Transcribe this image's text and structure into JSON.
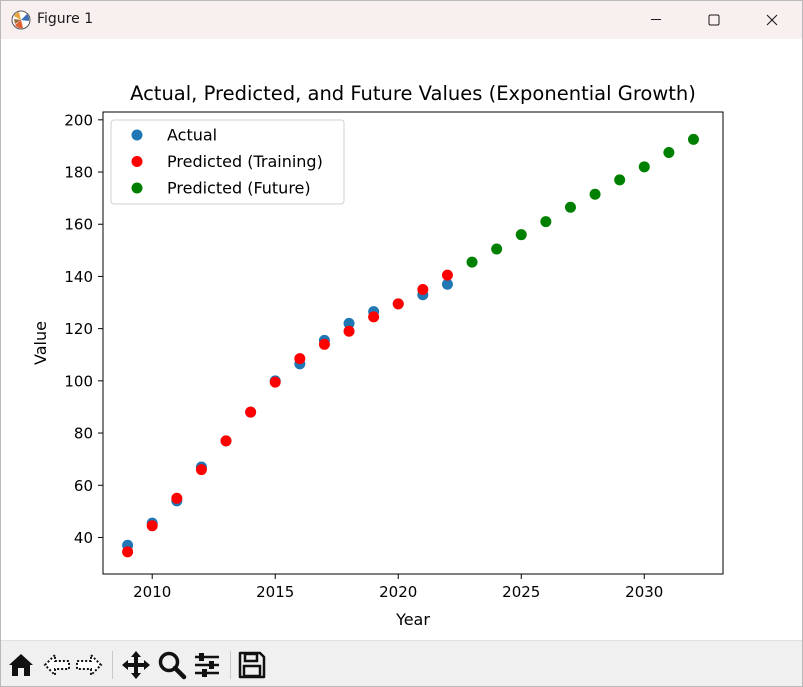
{
  "window": {
    "title": "Figure 1",
    "icon": "matplotlib-logo-icon",
    "controls": [
      "minimize-icon",
      "maximize-icon",
      "close-icon"
    ]
  },
  "toolbar": {
    "buttons": [
      "home-icon",
      "back-arrow-icon",
      "forward-arrow-icon",
      "pan-move-icon",
      "zoom-magnifier-icon",
      "configure-subplots-icon",
      "save-floppy-icon"
    ]
  },
  "colors": {
    "actual": "#1f77b4",
    "predicted_training": "#ff0000",
    "predicted_future": "#008000"
  },
  "chart_data": {
    "type": "scatter",
    "title": "Actual, Predicted, and Future Values (Exponential Growth)",
    "xlabel": "Year",
    "ylabel": "Value",
    "xlim": [
      2008,
      2033.2
    ],
    "ylim": [
      26,
      203
    ],
    "xticks": [
      2010,
      2015,
      2020,
      2025,
      2030
    ],
    "yticks": [
      40,
      60,
      80,
      100,
      120,
      140,
      160,
      180,
      200
    ],
    "legend_position": "upper-left",
    "grid": false,
    "series": [
      {
        "name": "Actual",
        "color": "#1f77b4",
        "x": [
          2009,
          2010,
          2011,
          2012,
          2013,
          2014,
          2015,
          2016,
          2017,
          2018,
          2019,
          2020,
          2021,
          2022
        ],
        "y": [
          37,
          45.5,
          54,
          67,
          77,
          88,
          100,
          106.5,
          115.5,
          122,
          126.5,
          129.5,
          133,
          137
        ]
      },
      {
        "name": "Predicted (Training)",
        "color": "#ff0000",
        "x": [
          2009,
          2010,
          2011,
          2012,
          2013,
          2014,
          2015,
          2016,
          2017,
          2018,
          2019,
          2020,
          2021,
          2022
        ],
        "y": [
          34.5,
          44.5,
          55,
          66,
          77,
          88,
          99.5,
          108.5,
          114,
          119,
          124.5,
          129.5,
          135,
          140.5
        ]
      },
      {
        "name": "Predicted (Future)",
        "color": "#008000",
        "x": [
          2023,
          2024,
          2025,
          2026,
          2027,
          2028,
          2029,
          2030,
          2031,
          2032
        ],
        "y": [
          145.5,
          150.5,
          156,
          161,
          166.5,
          171.5,
          177,
          182,
          187.5,
          192.5
        ]
      }
    ]
  }
}
